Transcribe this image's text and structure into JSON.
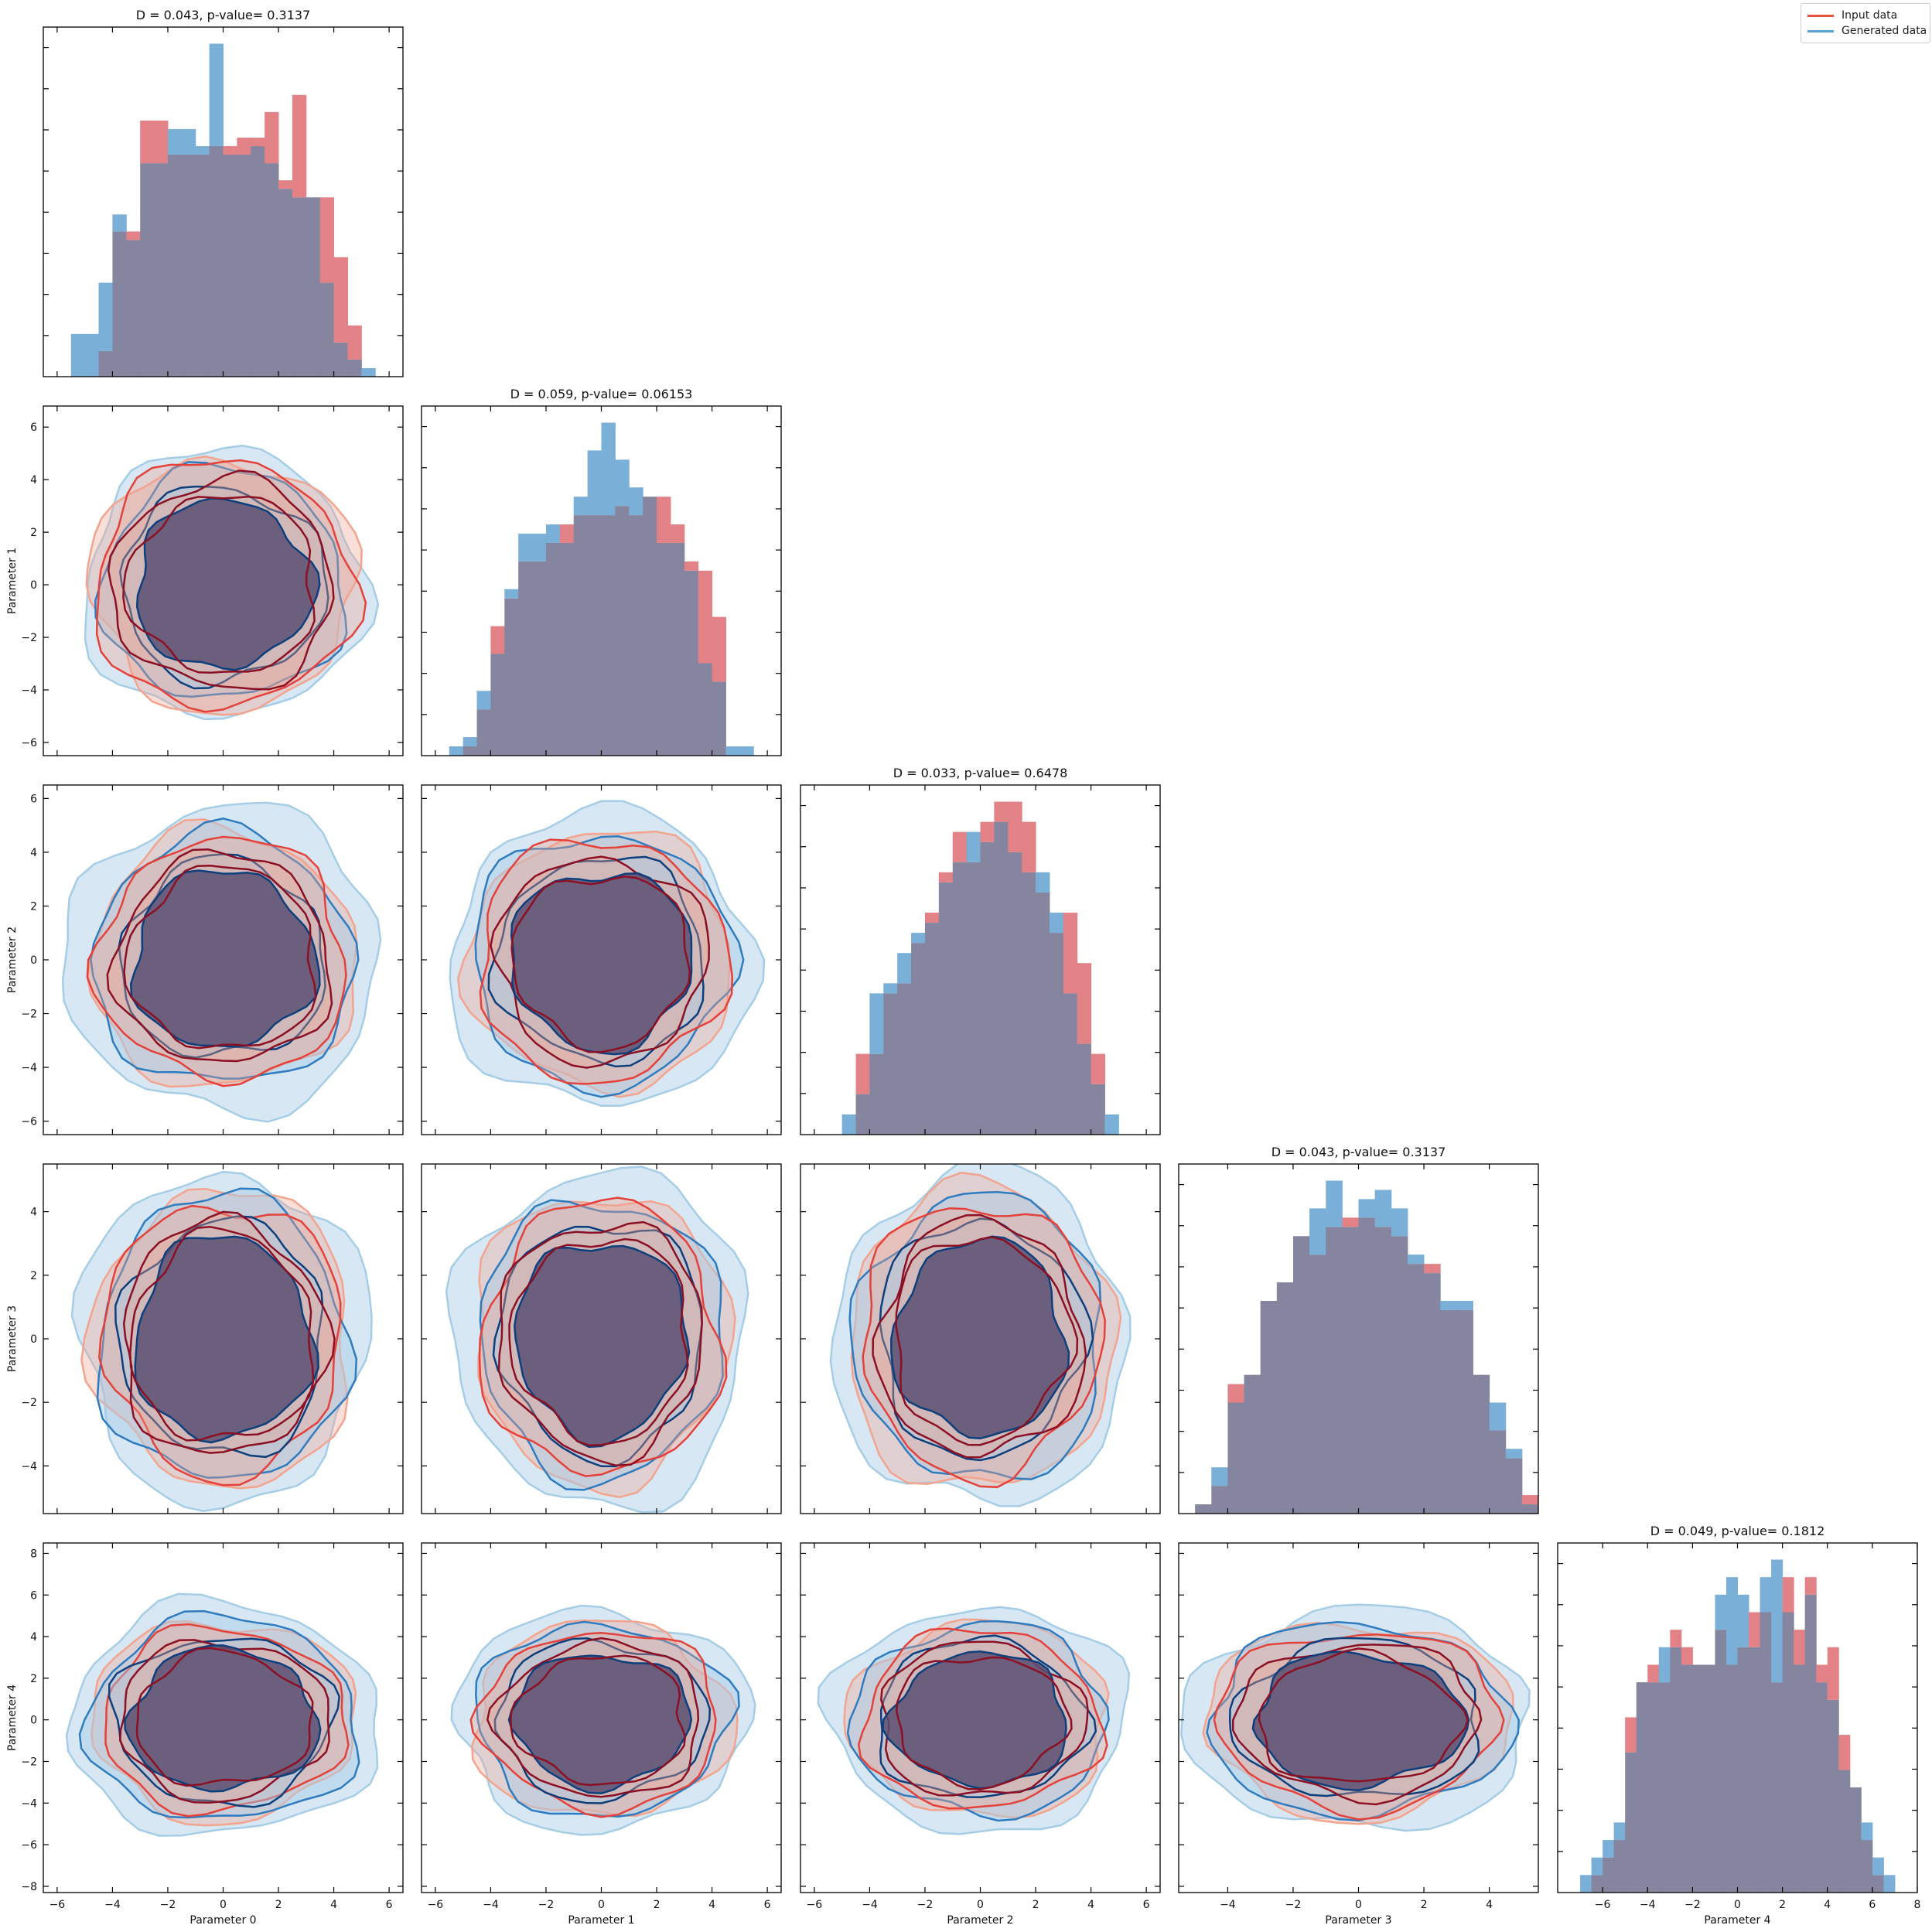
{
  "chart_data": {
    "type": "corner-plot",
    "legend": {
      "placement": "top-right",
      "entries": [
        {
          "label": "Input data",
          "color": "#e8533f"
        },
        {
          "label": "Generated data",
          "color": "#5aa3d6"
        }
      ]
    },
    "colors": {
      "input_hist": "#e28286",
      "generated_hist": "#7aafd8",
      "overlap_hist": "#85859f",
      "input_contour": [
        "#f2a48e",
        "#e4413a",
        "#8b1023"
      ],
      "generated_contour": [
        "#a6cde6",
        "#2f7bbf",
        "#0d3f7c"
      ],
      "overlap_fill": [
        "#9b8fae",
        "#75688e",
        "#5a4e72"
      ]
    },
    "parameters": [
      "Parameter 0",
      "Parameter 1",
      "Parameter 2",
      "Parameter 3",
      "Parameter 4"
    ],
    "diagonal_titles": [
      "D = 0.043, p-value= 0.3137",
      "D = 0.059, p-value= 0.06153",
      "D = 0.033, p-value= 0.6478",
      "D = 0.043, p-value= 0.3137",
      "D = 0.049, p-value= 0.1812"
    ],
    "x_ranges": [
      [
        -6.5,
        6.5
      ],
      [
        -6.5,
        6.5
      ],
      [
        -6.5,
        6.5
      ],
      [
        -5.5,
        5.5
      ],
      [
        -8,
        8
      ]
    ],
    "x_ticks": [
      [
        -6,
        -4,
        -2,
        0,
        2,
        4,
        6
      ],
      [
        -6,
        -4,
        -2,
        0,
        2,
        4,
        6
      ],
      [
        -6,
        -4,
        -2,
        0,
        2,
        4,
        6
      ],
      [
        -4,
        -2,
        0,
        2,
        4
      ],
      [
        -6,
        -4,
        -2,
        0,
        2,
        4,
        6,
        8
      ]
    ],
    "y_ranges": [
      null,
      [
        -6.5,
        6.8
      ],
      [
        -6.5,
        6.5
      ],
      [
        -5.5,
        5.5
      ],
      [
        -8.3,
        8.5
      ]
    ],
    "y_ticks": [
      null,
      [
        -6,
        -4,
        -2,
        0,
        2,
        4,
        6
      ],
      [
        -6,
        -4,
        -2,
        0,
        2,
        4,
        6
      ],
      [
        -4,
        -2,
        0,
        2,
        4
      ],
      [
        -8,
        -6,
        -4,
        -2,
        0,
        2,
        4,
        6,
        8
      ]
    ],
    "histograms": [
      {
        "bin_edges": [
          -5.5,
          -5,
          -4.5,
          -4,
          -3.5,
          -3,
          -2.5,
          -2,
          -1.5,
          -1,
          -0.5,
          0,
          0.5,
          1,
          1.5,
          2,
          2.5,
          3,
          3.5,
          4,
          4.5,
          5,
          5.5,
          6
        ],
        "input": [
          0,
          0,
          3,
          17,
          17,
          30,
          30,
          26,
          26,
          26,
          27,
          27,
          28,
          28,
          31,
          23,
          33,
          21,
          21,
          14,
          6,
          0,
          0
        ],
        "generated": [
          5,
          5,
          11,
          19,
          16,
          25,
          25,
          29,
          29,
          27,
          39,
          26,
          26,
          27,
          25,
          22,
          21,
          21,
          11,
          4,
          2,
          1,
          0
        ]
      },
      {
        "bin_edges": [
          -6,
          -5.5,
          -5,
          -4.5,
          -4,
          -3.5,
          -3,
          -2.5,
          -2,
          -1.5,
          -1,
          -0.5,
          0,
          0.5,
          1,
          1.5,
          2,
          2.5,
          3,
          3.5,
          4,
          4.5,
          5,
          5.5,
          6
        ],
        "input": [
          0,
          0,
          1,
          5,
          14,
          17,
          21,
          21,
          23,
          25,
          26,
          26,
          26,
          27,
          26,
          28,
          28,
          25,
          21,
          20,
          15,
          0,
          0,
          0
        ],
        "generated": [
          0,
          1,
          2,
          7,
          11,
          18,
          24,
          24,
          25,
          23,
          28,
          33,
          36,
          32,
          29,
          28,
          23,
          23,
          20,
          10,
          8,
          1,
          1,
          0
        ]
      },
      {
        "bin_edges": [
          -6,
          -5.5,
          -5,
          -4.5,
          -4,
          -3.5,
          -3,
          -2.5,
          -2,
          -1.5,
          -1,
          -0.5,
          0,
          0.5,
          1,
          1.5,
          2,
          2.5,
          3,
          3.5,
          4,
          4.5,
          5,
          5.5,
          6
        ],
        "input": [
          0,
          0,
          0,
          8,
          8,
          14,
          15,
          19,
          22,
          26,
          30,
          27,
          31,
          33,
          33,
          31,
          24,
          20,
          22,
          17,
          8,
          0,
          0,
          0
        ],
        "generated": [
          0,
          0,
          2,
          4,
          14,
          15,
          18,
          20,
          21,
          25,
          27,
          30,
          29,
          31,
          28,
          26,
          26,
          22,
          14,
          9,
          5,
          2,
          0,
          0
        ]
      },
      {
        "bin_edges": [
          -5,
          -4.5,
          -4,
          -3.5,
          -3,
          -2.5,
          -2,
          -1.5,
          -1,
          -0.5,
          0,
          0.5,
          1,
          1.5,
          2,
          2.5,
          3,
          3.5,
          4,
          4.5,
          5,
          5.5
        ],
        "input": [
          1,
          3,
          14,
          15,
          23,
          25,
          30,
          28,
          31,
          32,
          32,
          31,
          30,
          27,
          27,
          22,
          22,
          15,
          9,
          6,
          2
        ],
        "generated": [
          1,
          5,
          12,
          15,
          23,
          25,
          30,
          33,
          36,
          31,
          34,
          35,
          33,
          28,
          26,
          23,
          23,
          15,
          12,
          7,
          1
        ]
      },
      {
        "bin_edges": [
          -7,
          -6.5,
          -6,
          -5.5,
          -5,
          -4.5,
          -4,
          -3.5,
          -3,
          -2.5,
          -2,
          -1.5,
          -1,
          -0.5,
          0,
          0.5,
          1,
          1.5,
          2,
          2.5,
          3,
          3.5,
          4,
          4.5,
          5,
          5.5,
          6,
          6.5,
          7,
          7.5
        ],
        "input": [
          0,
          1,
          2,
          3,
          10,
          12,
          13,
          12,
          15,
          14,
          13,
          13,
          15,
          13,
          14,
          16,
          16,
          12,
          18,
          15,
          18,
          13,
          14,
          9,
          6,
          3,
          1,
          0,
          0
        ],
        "generated": [
          1,
          2,
          3,
          4,
          8,
          12,
          12,
          14,
          14,
          13,
          13,
          13,
          17,
          18,
          17,
          14,
          18,
          19,
          16,
          13,
          17,
          12,
          11,
          7,
          6,
          4,
          2,
          1,
          0
        ]
      }
    ],
    "contour_panels": [
      {
        "row": 1,
        "col": 0,
        "input": [
          [
            -4.8,
            4.8
          ],
          [
            -4.8,
            4.6
          ],
          [
            -4.2,
            3.8
          ],
          [
            -3.8,
            3.0
          ]
        ],
        "generated": [
          [
            -5.2,
            5.0
          ],
          [
            -4.6,
            4.2
          ],
          [
            -3.8,
            3.6
          ],
          [
            -3.4,
            3.0
          ]
        ]
      },
      {
        "row": 2,
        "col": 0,
        "input": [
          [
            -4.8,
            4.8
          ],
          [
            -4.6,
            4.4
          ],
          [
            -4.0,
            3.8
          ],
          [
            -3.6,
            3.2
          ]
        ],
        "generated": [
          [
            -5.4,
            6.0
          ],
          [
            -4.8,
            4.6
          ],
          [
            -3.8,
            3.6
          ],
          [
            -3.4,
            3.2
          ]
        ]
      },
      {
        "row": 2,
        "col": 1,
        "input": [
          [
            -4.6,
            5.0
          ],
          [
            -4.4,
            4.6
          ],
          [
            -3.8,
            3.8
          ],
          [
            -3.2,
            3.2
          ]
        ],
        "generated": [
          [
            -5.0,
            6.0
          ],
          [
            -4.6,
            4.8
          ],
          [
            -3.8,
            3.8
          ],
          [
            -3.2,
            3.4
          ]
        ]
      },
      {
        "row": 3,
        "col": 0,
        "input": [
          [
            -4.6,
            4.8
          ],
          [
            -4.2,
            4.4
          ],
          [
            -3.6,
            3.8
          ],
          [
            -3.2,
            3.4
          ]
        ],
        "generated": [
          [
            -5.2,
            5.2
          ],
          [
            -4.4,
            4.6
          ],
          [
            -3.6,
            3.8
          ],
          [
            -3.0,
            3.4
          ]
        ]
      },
      {
        "row": 3,
        "col": 1,
        "input": [
          [
            -4.6,
            4.6
          ],
          [
            -4.2,
            4.4
          ],
          [
            -3.6,
            3.8
          ],
          [
            -3.2,
            3.2
          ]
        ],
        "generated": [
          [
            -5.2,
            5.4
          ],
          [
            -4.2,
            4.6
          ],
          [
            -3.6,
            3.8
          ],
          [
            -3.0,
            3.2
          ]
        ]
      },
      {
        "row": 3,
        "col": 2,
        "input": [
          [
            -4.8,
            4.8
          ],
          [
            -4.2,
            4.4
          ],
          [
            -3.8,
            3.6
          ],
          [
            -3.2,
            3.2
          ]
        ],
        "generated": [
          [
            -5.2,
            5.4
          ],
          [
            -4.4,
            4.6
          ],
          [
            -3.6,
            3.8
          ],
          [
            -3.0,
            3.2
          ]
        ]
      },
      {
        "row": 4,
        "col": 0,
        "input": [
          [
            -4.6,
            5.0
          ],
          [
            -4.2,
            4.6
          ],
          [
            -3.6,
            4.0
          ],
          [
            -3.0,
            3.4
          ]
        ],
        "generated": [
          [
            -5.2,
            6.0
          ],
          [
            -4.6,
            5.2
          ],
          [
            -3.8,
            4.2
          ],
          [
            -3.2,
            3.6
          ]
        ]
      },
      {
        "row": 4,
        "col": 1,
        "input": [
          [
            -4.6,
            4.8
          ],
          [
            -4.2,
            4.4
          ],
          [
            -3.6,
            3.8
          ],
          [
            -3.0,
            3.2
          ]
        ],
        "generated": [
          [
            -5.2,
            5.4
          ],
          [
            -4.4,
            4.8
          ],
          [
            -3.6,
            4.0
          ],
          [
            -3.0,
            3.4
          ]
        ]
      },
      {
        "row": 4,
        "col": 2,
        "input": [
          [
            -4.6,
            4.8
          ],
          [
            -4.2,
            4.4
          ],
          [
            -3.6,
            3.8
          ],
          [
            -3.0,
            3.2
          ]
        ],
        "generated": [
          [
            -5.2,
            5.6
          ],
          [
            -4.4,
            4.8
          ],
          [
            -3.6,
            4.0
          ],
          [
            -3.0,
            3.4
          ]
        ]
      },
      {
        "row": 4,
        "col": 3,
        "input": [
          [
            -4.6,
            4.8
          ],
          [
            -4.2,
            4.4
          ],
          [
            -3.6,
            3.8
          ],
          [
            -3.0,
            3.2
          ]
        ],
        "generated": [
          [
            -5.0,
            5.6
          ],
          [
            -4.4,
            4.8
          ],
          [
            -3.6,
            4.0
          ],
          [
            -3.0,
            3.4
          ]
        ]
      }
    ]
  }
}
